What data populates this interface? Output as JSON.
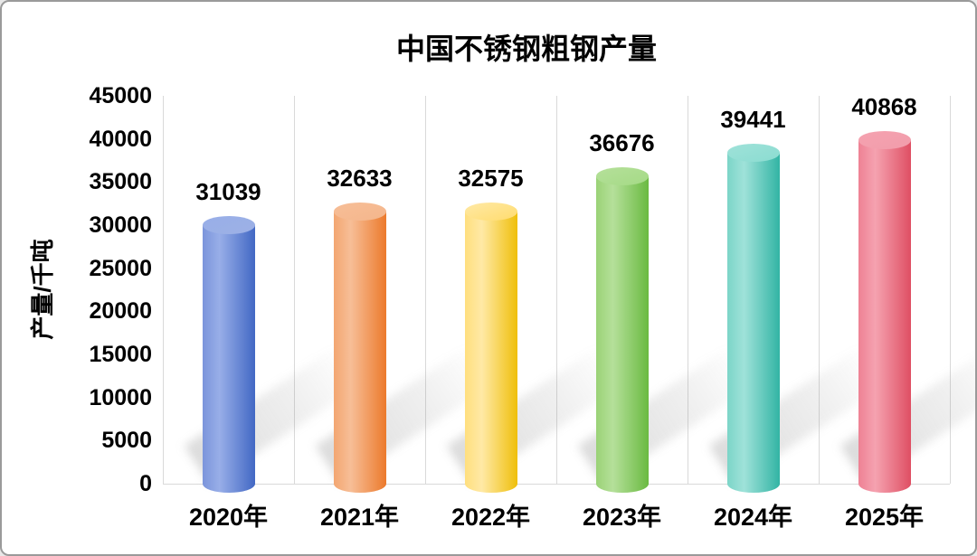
{
  "chart_data": {
    "type": "bar",
    "subtype": "3d-cylinder",
    "title": "中国不锈钢粗钢产量",
    "ylabel": "产量/千吨",
    "xlabel": "",
    "categories": [
      "2020年",
      "2021年",
      "2022年",
      "2023年",
      "2024年",
      "2025年"
    ],
    "values": [
      31039,
      32633,
      32575,
      36676,
      39441,
      40868
    ],
    "ylim": [
      0,
      45000
    ],
    "yticks": [
      0,
      5000,
      10000,
      15000,
      20000,
      25000,
      30000,
      35000,
      40000,
      45000
    ],
    "legend": "none",
    "grid": "vertical-category-separators",
    "gridline_color": "#d9d9d9",
    "shadow_color": "rgba(125,125,125,0.28)",
    "bar_colors": [
      {
        "name": "blue",
        "body_left": "#7B95DB",
        "body_mid": "#98AEE8",
        "body_right": "#4268C4",
        "top": "#9DB1E5"
      },
      {
        "name": "orange",
        "body_left": "#F3A671",
        "body_mid": "#F7BE97",
        "body_right": "#EC7A2C",
        "top": "#F4B68C"
      },
      {
        "name": "yellow",
        "body_left": "#FFDF7E",
        "body_mid": "#FFE9A6",
        "body_right": "#EFBF0A",
        "top": "#FFDC6E"
      },
      {
        "name": "green",
        "body_left": "#9AD276",
        "body_mid": "#B5E09A",
        "body_right": "#6ABA41",
        "top": "#A5DA86"
      },
      {
        "name": "teal",
        "body_left": "#7CD5C8",
        "body_mid": "#9FE2D9",
        "body_right": "#32B4A4",
        "top": "#8BDCD1"
      },
      {
        "name": "rose",
        "body_left": "#EE8194",
        "body_mid": "#F5A2B0",
        "body_right": "#DF4F63",
        "top": "#F19DAB"
      }
    ]
  }
}
